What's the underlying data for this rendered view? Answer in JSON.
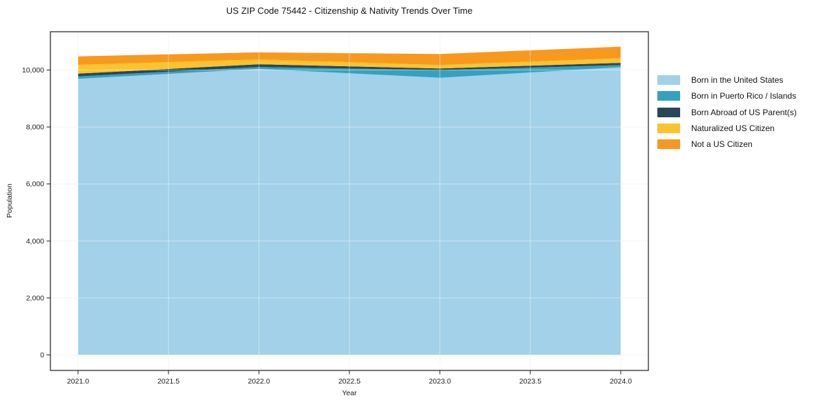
{
  "figure": {
    "title": "US ZIP Code 75442 - Citizenship & Nativity Trends Over Time"
  },
  "chart_data": {
    "type": "area",
    "stacked": true,
    "title": "US ZIP Code 75442 - Citizenship & Nativity Trends Over Time",
    "xlabel": "Year",
    "ylabel": "Population",
    "x": [
      2021,
      2022,
      2023,
      2024
    ],
    "series": [
      {
        "name": "Born in the United States",
        "color": "#a2d1e9",
        "values": [
          9690,
          10040,
          9730,
          10100
        ]
      },
      {
        "name": "Born in Puerto Rico / Islands",
        "color": "#35a1c1",
        "values": [
          87,
          66,
          266,
          72
        ]
      },
      {
        "name": "Born Abroad of US Parent(s)",
        "color": "#2a4757",
        "values": [
          97,
          97,
          58,
          80
        ]
      },
      {
        "name": "Naturalized US Citizen",
        "color": "#fcc32c",
        "values": [
          308,
          171,
          120,
          163
        ]
      },
      {
        "name": "Not a US Citizen",
        "color": "#f8991f",
        "values": [
          298,
          246,
          388,
          405
        ]
      }
    ],
    "totals": [
      10480,
      10620,
      10562,
      10820
    ],
    "x_tick_values": [
      2021.0,
      2021.5,
      2022.0,
      2022.5,
      2023.0,
      2023.5,
      2024.0
    ],
    "x_tick_labels": [
      "2021.0",
      "2021.5",
      "2022.0",
      "2022.5",
      "2023.0",
      "2023.5",
      "2024.0"
    ],
    "y_tick_values": [
      0,
      2000,
      4000,
      6000,
      8000,
      10000
    ],
    "y_tick_labels": [
      "0",
      "2,000",
      "4,000",
      "6,000",
      "8,000",
      "10,000"
    ],
    "xlim": [
      2020.86,
      2024.15
    ],
    "ylim": [
      -560,
      11350
    ],
    "grid": true,
    "legend_position": "right"
  },
  "colors": {
    "axis": "#1a1a1a",
    "grid_under": "#ebebeb",
    "grid_over": "rgba(255,255,255,0.45)",
    "tick_text": "#1a1a1a",
    "background": "#ffffff"
  }
}
